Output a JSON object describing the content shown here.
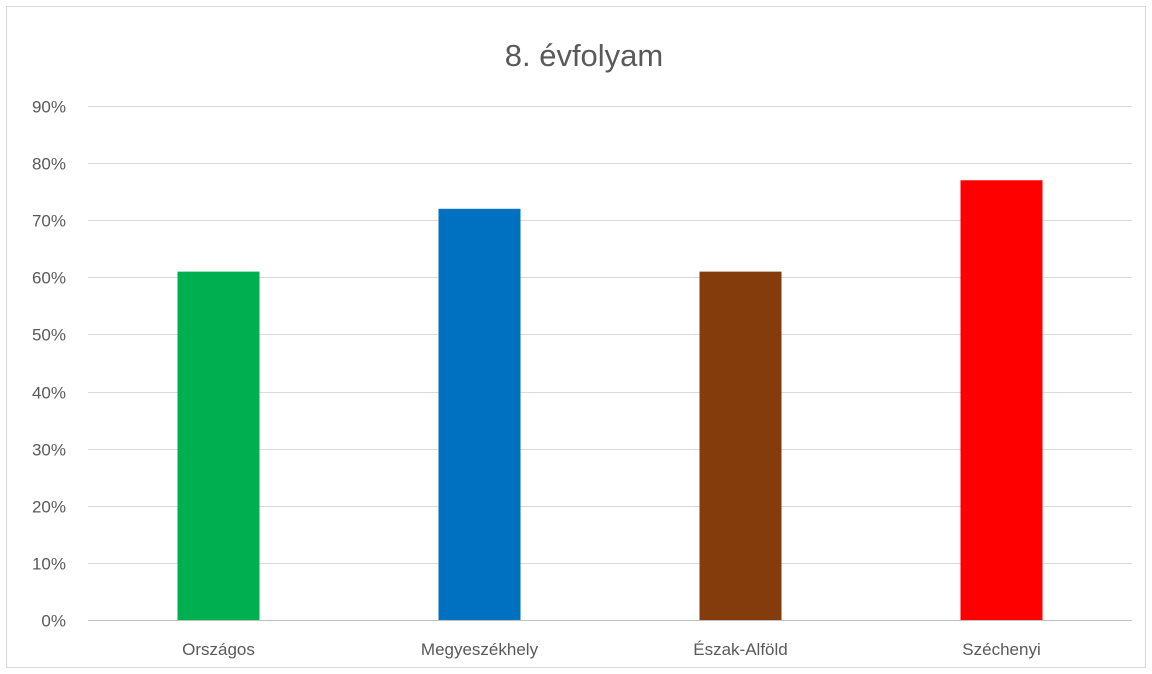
{
  "chart_data": {
    "type": "bar",
    "title": "8. évfolyam",
    "xlabel": "",
    "ylabel": "",
    "categories": [
      "Országos",
      "Megyeszékhely",
      "Észak-Alföld",
      "Széchenyi"
    ],
    "values": [
      61,
      72,
      61,
      77
    ],
    "colors": [
      "#00b050",
      "#0070c0",
      "#843c0c",
      "#ff0000"
    ],
    "ylim": [
      0,
      90
    ],
    "y_ticks": [
      0,
      10,
      20,
      30,
      40,
      50,
      60,
      70,
      80,
      90
    ],
    "y_tick_labels": [
      "0%",
      "10%",
      "20%",
      "30%",
      "40%",
      "50%",
      "60%",
      "70%",
      "80%",
      "90%"
    ],
    "grid": true,
    "legend": false
  }
}
